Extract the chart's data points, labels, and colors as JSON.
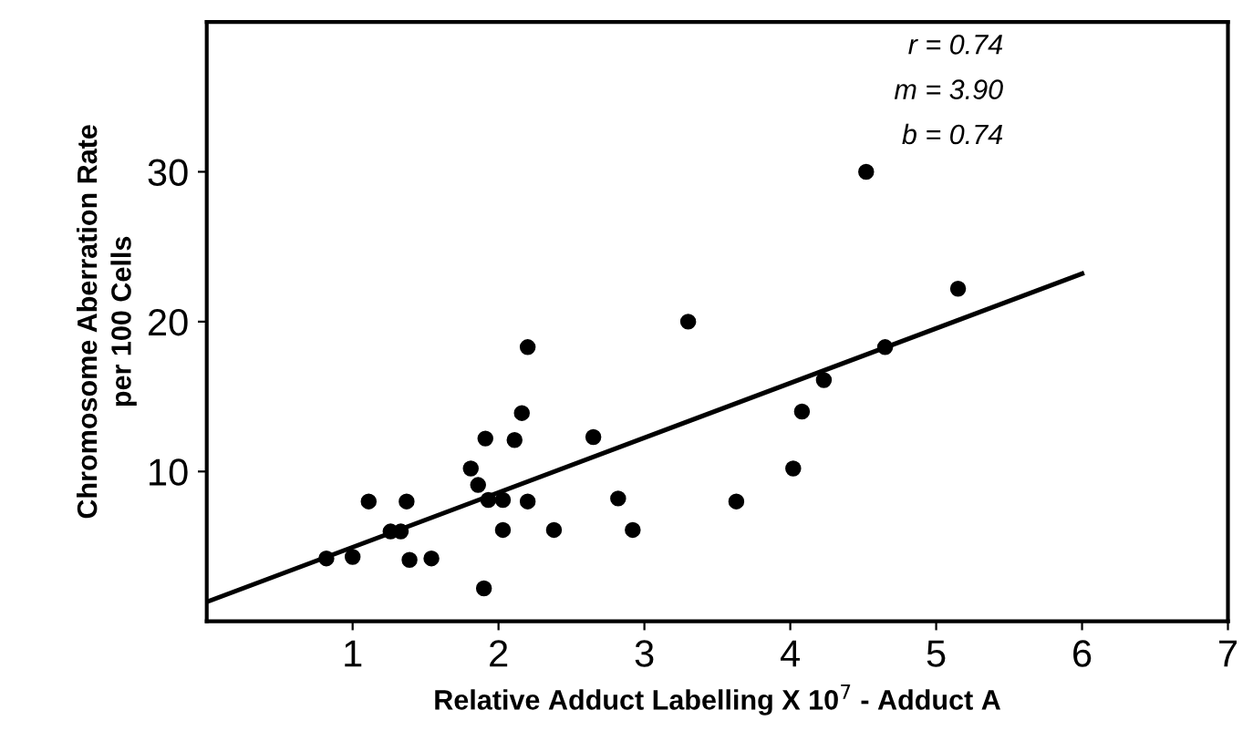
{
  "chart_data": {
    "type": "scatter",
    "xlabel": "Relative Adduct Labelling X 10$^{7}$ - Adduct A",
    "ylabel": "Chromosome Aberration Rate\nper 100 Cells",
    "xlim": [
      0,
      7
    ],
    "xticks": [
      1,
      2,
      3,
      4,
      5,
      6,
      7
    ],
    "ylim": [
      0,
      40
    ],
    "yticks": [
      10,
      20,
      30
    ],
    "grid": false,
    "legend": false,
    "annotations": [
      "r = 0.74",
      "m = 3.90",
      "b = 0.74"
    ],
    "series": [
      {
        "marker": "circle",
        "color": "#000000",
        "x": [
          0.82,
          1.0,
          1.11,
          1.26,
          1.33,
          1.37,
          1.39,
          1.54,
          1.81,
          1.86,
          1.91,
          1.9,
          1.93,
          2.03,
          2.03,
          2.11,
          2.16,
          2.2,
          2.2,
          2.38,
          2.65,
          2.82,
          2.92,
          3.3,
          3.63,
          4.02,
          4.08,
          4.23,
          4.52,
          4.65,
          5.15
        ],
        "values": [
          4.2,
          4.3,
          8.0,
          6.0,
          6.0,
          8.0,
          4.1,
          4.2,
          10.2,
          9.1,
          12.2,
          2.2,
          8.1,
          8.1,
          6.1,
          12.1,
          13.9,
          18.3,
          8.0,
          6.1,
          12.3,
          8.2,
          6.1,
          20.0,
          8.0,
          10.2,
          14.0,
          16.1,
          30.0,
          18.3,
          22.2
        ]
      },
      {
        "type": "line",
        "color": "#000000",
        "line_style": "solid",
        "x": [
          0,
          6
        ],
        "values": [
          1.3,
          23.2
        ]
      }
    ]
  }
}
